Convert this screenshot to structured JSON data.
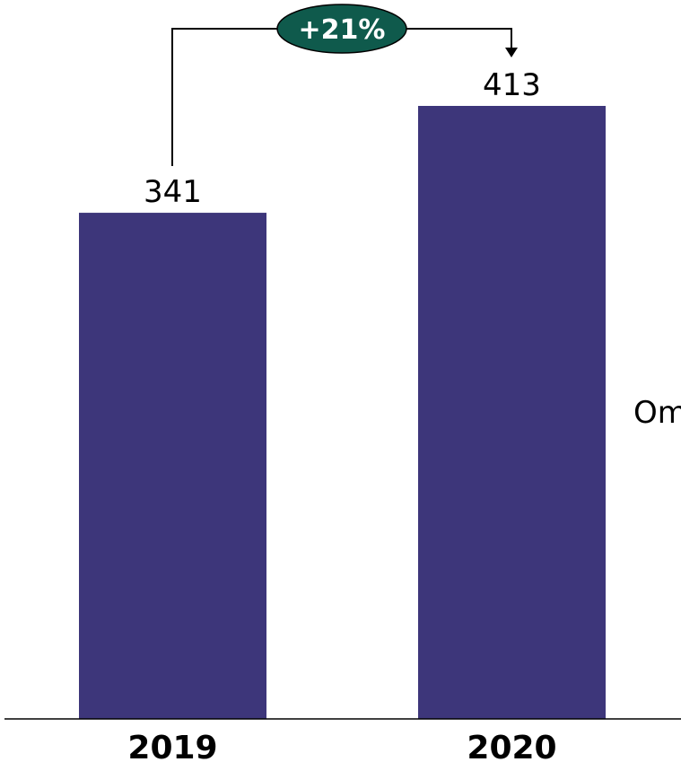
{
  "chart_data": {
    "type": "bar",
    "categories": [
      "2019",
      "2020"
    ],
    "values": [
      341,
      413
    ],
    "ylim": [
      0,
      413
    ],
    "growth_label": "+21%",
    "side_label": "Om",
    "grid": false,
    "colors": {
      "bar": "#3d367a",
      "badge": "#0f5a4c",
      "axis": "#000000",
      "connector": "#000000"
    }
  }
}
